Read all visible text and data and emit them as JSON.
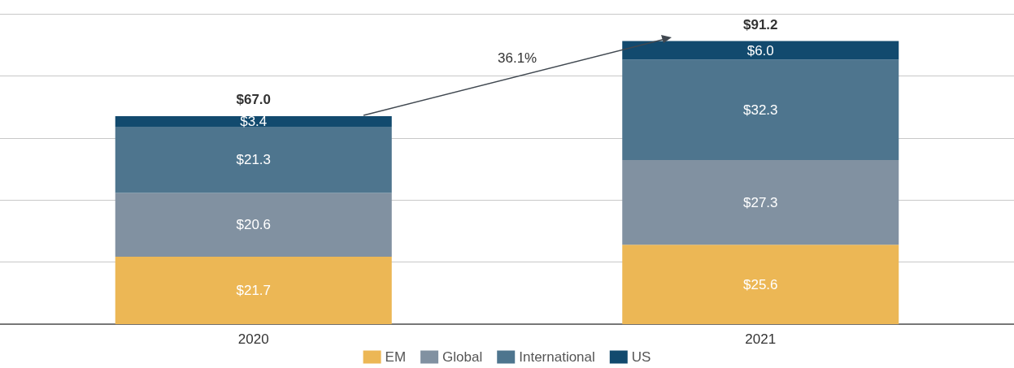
{
  "chart_data": {
    "type": "bar",
    "stacked": true,
    "categories": [
      "2020",
      "2021"
    ],
    "series": [
      {
        "name": "EM",
        "color": "#ecb755",
        "values": [
          21.7,
          25.6
        ],
        "value_labels": [
          "$21.7",
          "$25.6"
        ]
      },
      {
        "name": "Global",
        "color": "#8191a1",
        "values": [
          20.6,
          27.3
        ],
        "value_labels": [
          "$20.6",
          "$27.3"
        ]
      },
      {
        "name": "International",
        "color": "#4e758e",
        "values": [
          21.3,
          32.3
        ],
        "value_labels": [
          "$21.3",
          "$32.3"
        ]
      },
      {
        "name": "US",
        "color": "#124a6e",
        "values": [
          3.4,
          6.0
        ],
        "value_labels": [
          "$3.4",
          "$6.0"
        ]
      }
    ],
    "totals": [
      "$67.0",
      "$91.2"
    ],
    "annotations": [
      "36.1%"
    ],
    "ylim": [
      0,
      100
    ],
    "yticks": [
      {
        "value": 0,
        "label": null
      },
      {
        "value": 20,
        "label": null
      },
      {
        "value": 40,
        "label": null
      },
      {
        "value": 60,
        "label": null
      },
      {
        "value": 80,
        "label": null
      },
      {
        "value": 100,
        "label": null
      }
    ],
    "tick_labels": "x",
    "grid": "y",
    "legend": "bottom"
  }
}
